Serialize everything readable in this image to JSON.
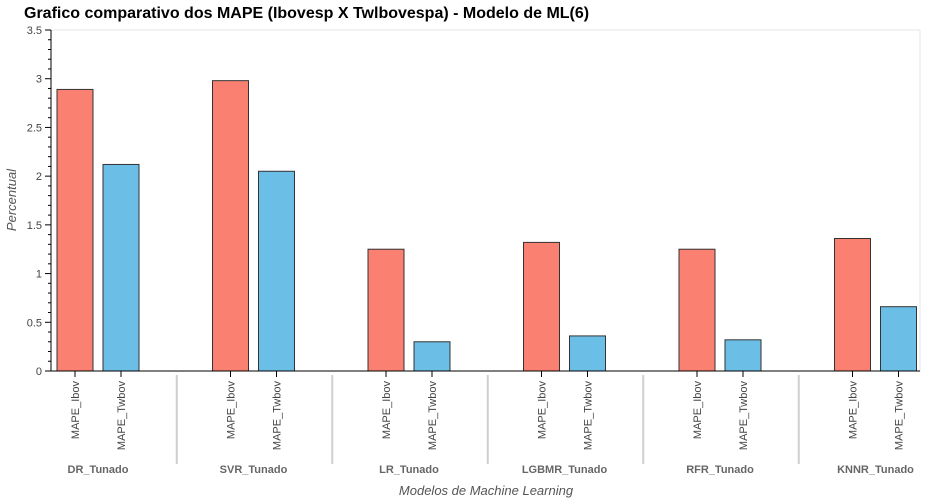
{
  "chart_data": {
    "type": "bar",
    "title": "Grafico comparativo dos MAPE (Ibovesp X Twlbovespa) - Modelo de ML(6)",
    "xlabel": "Modelos de Machine Learning",
    "ylabel": "Percentual",
    "ylim": [
      0,
      3.5
    ],
    "yticks": [
      "0",
      "0.5",
      "1",
      "1.5",
      "2",
      "2.5",
      "3",
      "3.5"
    ],
    "categories": [
      "DR_Tunado",
      "SVR_Tunado",
      "LR_Tunado",
      "LGBMR_Tunado",
      "RFR_Tunado",
      "KNNR_Tunado"
    ],
    "series": [
      {
        "name": "MAPE_Ibov",
        "color": "#fa8072",
        "values": [
          2.89,
          2.98,
          1.25,
          1.32,
          1.25,
          1.36
        ]
      },
      {
        "name": "MAPE_Twbov",
        "color": "#6bbee6",
        "values": [
          2.12,
          2.05,
          0.3,
          0.36,
          0.32,
          0.66
        ]
      }
    ],
    "grid": false,
    "legend": "none"
  }
}
